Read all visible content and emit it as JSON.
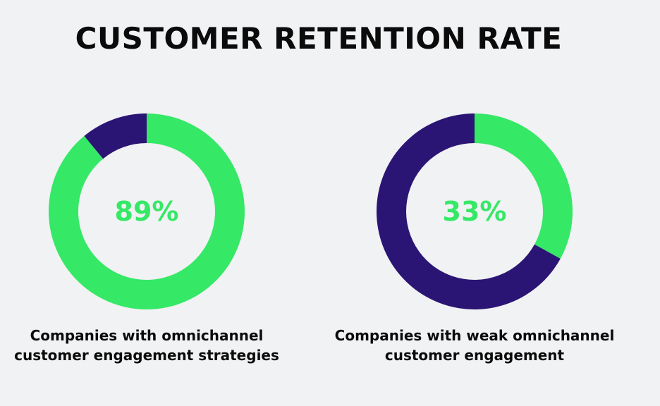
{
  "chart_data": [
    {
      "type": "pie",
      "title": "CUSTOMER RETENTION RATE",
      "center_label": "89%",
      "value": 89,
      "caption_line1": "Companies with omnichannel",
      "caption_line2": "customer engagement strategies",
      "colors": {
        "value": "#35e866",
        "remainder": "#2b1574"
      }
    },
    {
      "type": "pie",
      "center_label": "33%",
      "value": 33,
      "caption_line1": "Companies with weak omnichannel",
      "caption_line2": "customer engagement",
      "colors": {
        "value": "#35e866",
        "remainder": "#2b1574"
      }
    }
  ]
}
